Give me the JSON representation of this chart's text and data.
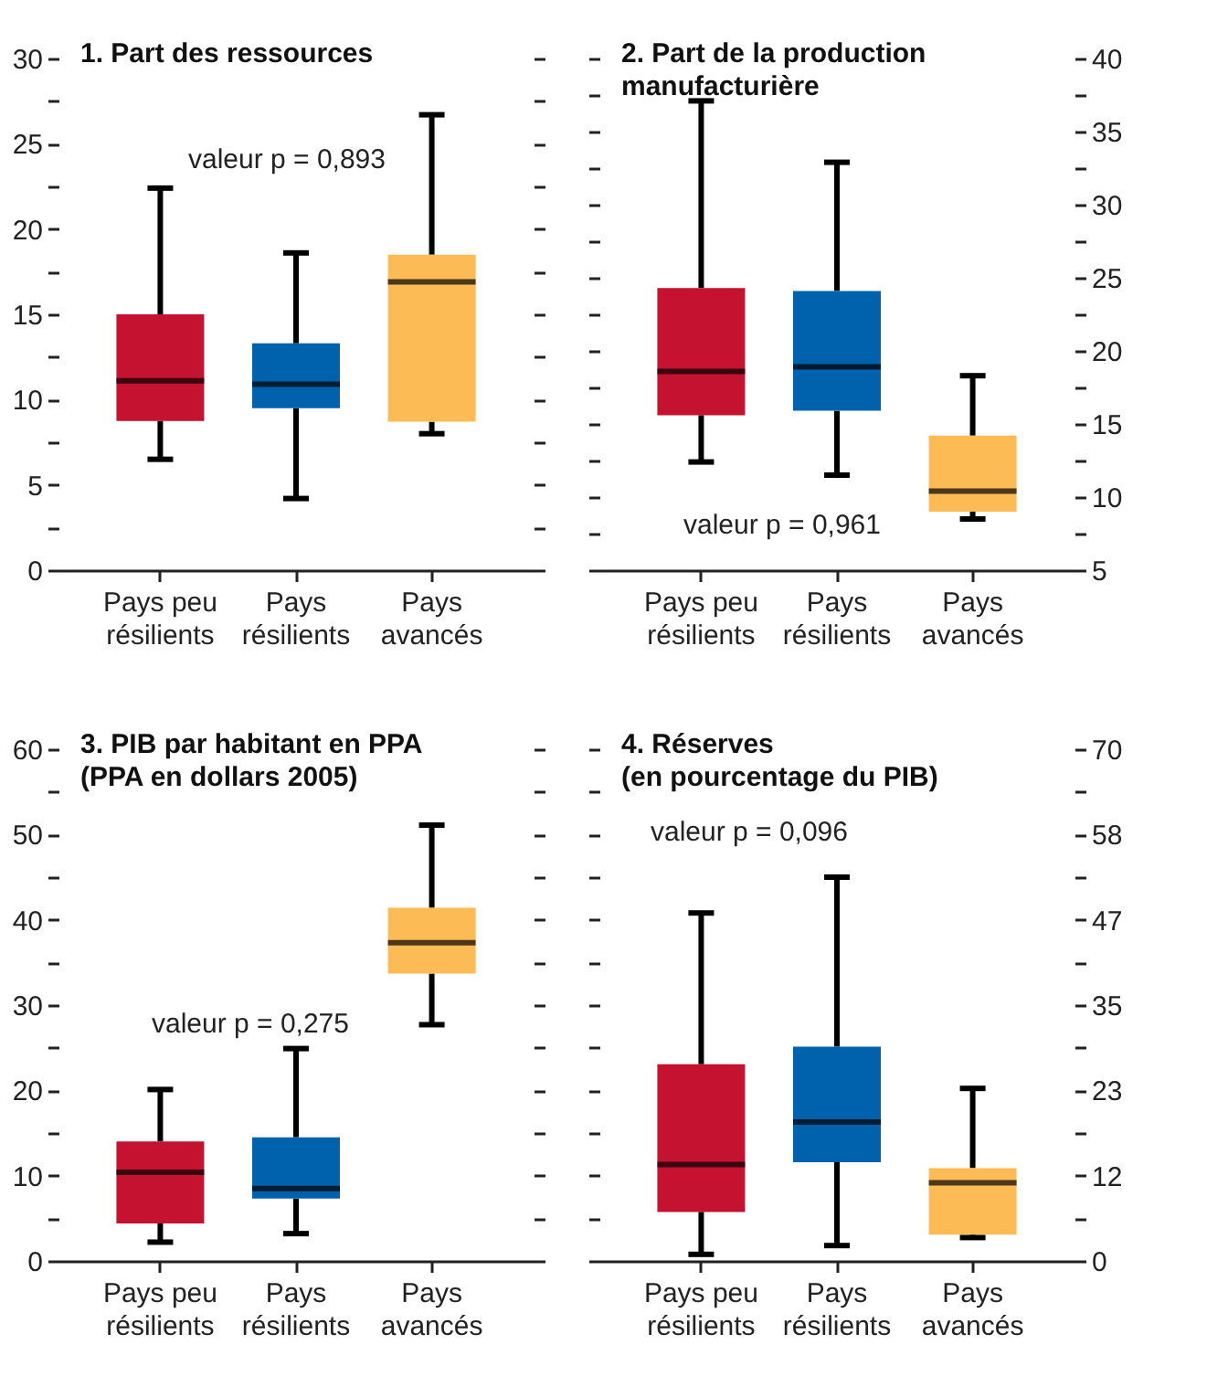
{
  "chart_data": [
    {
      "type": "box",
      "title": "1. Part des ressources",
      "categories": [
        "Pays peu résilients",
        "Pays résilients",
        "Pays avancés"
      ],
      "colors": [
        "#c41230",
        "#0062ad",
        "#fdbb55"
      ],
      "series": [
        {
          "boxes": [
            {
              "low": 6.5,
              "q1": 8.75,
              "median": 11.1,
              "q3": 15.0,
              "high": 22.4
            },
            {
              "low": 4.2,
              "q1": 9.5,
              "median": 10.9,
              "q3": 13.3,
              "high": 18.6
            },
            {
              "low": 8.0,
              "q1": 8.7,
              "median": 16.9,
              "q3": 18.5,
              "high": 26.7
            }
          ]
        }
      ],
      "ylim": [
        0,
        30
      ],
      "yticks": [
        0,
        {
          "value": 2.5,
          "label": null
        },
        5,
        {
          "value": 7.5,
          "label": null
        },
        10,
        {
          "value": 12.5,
          "label": null
        },
        15,
        {
          "value": 17.5,
          "label": null
        },
        20,
        {
          "value": 22.5,
          "label": null
        },
        25,
        {
          "value": 27.5,
          "label": null
        },
        30
      ],
      "annotations": [
        "valeur p = 0,893"
      ]
    },
    {
      "type": "box",
      "title": "2. Part de la production\nmanufacturière",
      "categories": [
        "Pays peu résilients",
        "Pays résilients",
        "Pays avancés"
      ],
      "colors": [
        "#c41230",
        "#0062ad",
        "#fdbb55"
      ],
      "series": [
        {
          "axis": "y2",
          "boxes": [
            {
              "low": 12.4,
              "q1": 15.6,
              "median": 18.6,
              "q3": 24.3,
              "high": 37.1
            },
            {
              "low": 11.5,
              "q1": 15.9,
              "median": 18.9,
              "q3": 24.1,
              "high": 32.9
            },
            {
              "low": 8.5,
              "q1": 9.0,
              "median": 10.4,
              "q3": 14.2,
              "high": 18.3
            }
          ]
        }
      ],
      "y2lim": [
        5,
        40
      ],
      "y2ticks": [
        5,
        {
          "value": 7.5,
          "label": null
        },
        10,
        {
          "value": 12.5,
          "label": null
        },
        15,
        {
          "value": 17.5,
          "label": null
        },
        20,
        {
          "value": 22.5,
          "label": null
        },
        25,
        {
          "value": 27.5,
          "label": null
        },
        30,
        {
          "value": 32.5,
          "label": null
        },
        35,
        {
          "value": 37.5,
          "label": null
        },
        40
      ],
      "annotations": [
        "valeur p = 0,961"
      ]
    },
    {
      "type": "box",
      "title": "3. PIB par habitant en PPA\n(PPA en dollars 2005)",
      "categories": [
        "Pays peu résilients",
        "Pays résilients",
        "Pays avancés"
      ],
      "colors": [
        "#c41230",
        "#0062ad",
        "#fdbb55"
      ],
      "series": [
        {
          "boxes": [
            {
              "low": 2.2,
              "q1": 4.4,
              "median": 10.4,
              "q3": 14.0,
              "high": 20.1
            },
            {
              "low": 3.2,
              "q1": 7.3,
              "median": 8.5,
              "q3": 14.5,
              "high": 24.9
            },
            {
              "low": 27.7,
              "q1": 33.7,
              "median": 37.3,
              "q3": 41.4,
              "high": 51.1
            }
          ]
        }
      ],
      "ylim": [
        0,
        60
      ],
      "yticks": [
        0,
        {
          "value": 5,
          "label": null
        },
        10,
        {
          "value": 15,
          "label": null
        },
        20,
        {
          "value": 25,
          "label": null
        },
        30,
        {
          "value": 35,
          "label": null
        },
        40,
        {
          "value": 45,
          "label": null
        },
        50,
        {
          "value": 55,
          "label": null
        },
        60
      ],
      "annotations": [
        "valeur p = 0,275"
      ]
    },
    {
      "type": "box",
      "title": "4. Réserves\n(en pourcentage du PIB)",
      "categories": [
        "Pays peu résilients",
        "Pays résilients",
        "Pays avancés"
      ],
      "colors": [
        "#c41230",
        "#0062ad",
        "#fdbb55"
      ],
      "series": [
        {
          "axis": "y2",
          "boxes": [
            {
              "low": 0.9,
              "q1": 6.7,
              "median": 13.2,
              "q3": 26.9,
              "high": 47.6
            },
            {
              "low": 2.1,
              "q1": 13.5,
              "median": 19.0,
              "q3": 29.3,
              "high": 52.5
            },
            {
              "low": 3.2,
              "q1": 3.6,
              "median": 10.7,
              "q3": 12.7,
              "high": 23.6
            }
          ]
        }
      ],
      "y2lim": [
        0,
        70
      ],
      "y2ticks": [
        0,
        {
          "value": 5.83,
          "label": null
        },
        {
          "value": 11.67,
          "label": "12"
        },
        {
          "value": 17.5,
          "label": null
        },
        {
          "value": 23.33,
          "label": "23"
        },
        {
          "value": 29.17,
          "label": null
        },
        35,
        {
          "value": 40.83,
          "label": null
        },
        {
          "value": 46.67,
          "label": "47"
        },
        {
          "value": 52.5,
          "label": null
        },
        {
          "value": 58.33,
          "label": "58"
        },
        {
          "value": 64.17,
          "label": null
        },
        70
      ],
      "annotations": [
        "valeur p = 0,096"
      ]
    }
  ]
}
